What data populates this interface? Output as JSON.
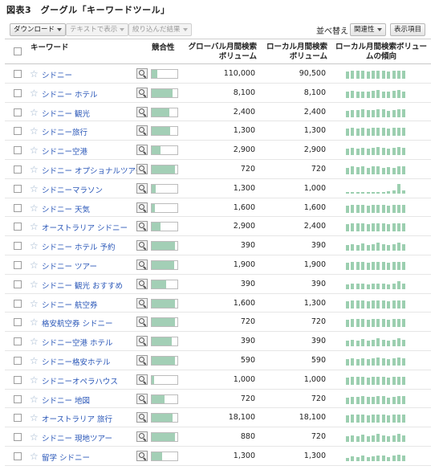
{
  "caption": "図表3　グーグル「キーワードツール」",
  "toolbar": {
    "download": "ダウンロード",
    "view_as_text": "テキストで表示",
    "filtered_results": "絞り込んだ結果",
    "sort_label": "並べ替え",
    "sort_value": "関連性",
    "display_items": "表示項目"
  },
  "header": {
    "keyword": "キーワード",
    "competition": "競合性",
    "global_volume_1": "グローバル月間検索",
    "global_volume_2": "ボリューム",
    "local_volume_1": "ローカル月間検索",
    "local_volume_2": "ボリューム",
    "local_trend_1": "ローカル月間検索ボリュー",
    "local_trend_2": "ムの傾向"
  },
  "rows": [
    {
      "keyword": "シドニー",
      "competition": 0.22,
      "global": "110,000",
      "local": "90,500",
      "trend": [
        0.75,
        0.8,
        0.8,
        0.8,
        0.75,
        0.8,
        0.85,
        0.8,
        0.75,
        0.8,
        0.85,
        0.8
      ]
    },
    {
      "keyword": "シドニー ホテル",
      "competition": 0.8,
      "global": "8,100",
      "local": "8,100",
      "trend": [
        0.7,
        0.75,
        0.7,
        0.7,
        0.7,
        0.75,
        0.8,
        0.7,
        0.7,
        0.75,
        0.8,
        0.7
      ]
    },
    {
      "keyword": "シドニー 観光",
      "competition": 0.68,
      "global": "2,400",
      "local": "2,400",
      "trend": [
        0.7,
        0.75,
        0.75,
        0.8,
        0.75,
        0.75,
        0.8,
        0.8,
        0.7,
        0.75,
        0.85,
        0.8
      ]
    },
    {
      "keyword": "シドニー旅行",
      "competition": 0.72,
      "global": "1,300",
      "local": "1,300",
      "trend": [
        0.75,
        0.8,
        0.75,
        0.8,
        0.75,
        0.8,
        0.85,
        0.8,
        0.75,
        0.8,
        0.85,
        0.8
      ]
    },
    {
      "keyword": "シドニー空港",
      "competition": 0.35,
      "global": "2,900",
      "local": "2,900",
      "trend": [
        0.7,
        0.75,
        0.7,
        0.75,
        0.7,
        0.75,
        0.8,
        0.75,
        0.7,
        0.75,
        0.8,
        0.75
      ]
    },
    {
      "keyword": "シドニー オプショナルツアー",
      "competition": 0.9,
      "global": "720",
      "local": "720",
      "trend": [
        0.7,
        0.8,
        0.75,
        0.8,
        0.7,
        0.8,
        0.85,
        0.7,
        0.75,
        0.7,
        0.8,
        0.8
      ]
    },
    {
      "keyword": "シドニーマラソン",
      "competition": 0.15,
      "global": "1,300",
      "local": "1,000",
      "trend": [
        0.15,
        0.15,
        0.15,
        0.2,
        0.15,
        0.2,
        0.2,
        0.2,
        0.25,
        0.3,
        1.0,
        0.3
      ]
    },
    {
      "keyword": "シドニー 天気",
      "competition": 0.12,
      "global": "1,600",
      "local": "1,600",
      "trend": [
        0.75,
        0.8,
        0.8,
        0.8,
        0.75,
        0.8,
        0.85,
        0.8,
        0.75,
        0.8,
        0.85,
        0.8
      ]
    },
    {
      "keyword": "オーストラリア シドニー",
      "competition": 0.35,
      "global": "2,900",
      "local": "2,400",
      "trend": [
        0.75,
        0.8,
        0.8,
        0.8,
        0.75,
        0.8,
        0.85,
        0.8,
        0.75,
        0.8,
        0.85,
        0.8
      ]
    },
    {
      "keyword": "シドニー ホテル 予約",
      "competition": 0.92,
      "global": "390",
      "local": "390",
      "trend": [
        0.6,
        0.7,
        0.6,
        0.75,
        0.6,
        0.7,
        0.8,
        0.7,
        0.6,
        0.7,
        0.8,
        0.7
      ]
    },
    {
      "keyword": "シドニー ツアー",
      "competition": 0.88,
      "global": "1,900",
      "local": "1,900",
      "trend": [
        0.75,
        0.8,
        0.8,
        0.8,
        0.75,
        0.8,
        0.85,
        0.8,
        0.75,
        0.8,
        0.85,
        0.8
      ]
    },
    {
      "keyword": "シドニー 観光 おすすめ",
      "competition": 0.55,
      "global": "390",
      "local": "390",
      "trend": [
        0.5,
        0.6,
        0.55,
        0.6,
        0.5,
        0.55,
        0.6,
        0.55,
        0.5,
        0.6,
        0.8,
        0.6
      ]
    },
    {
      "keyword": "シドニー 航空券",
      "competition": 0.92,
      "global": "1,600",
      "local": "1,300",
      "trend": [
        0.75,
        0.8,
        0.8,
        0.8,
        0.75,
        0.8,
        0.85,
        0.8,
        0.75,
        0.8,
        0.85,
        0.8
      ]
    },
    {
      "keyword": "格安航空券 シドニー",
      "competition": 0.9,
      "global": "720",
      "local": "720",
      "trend": [
        0.75,
        0.8,
        0.8,
        0.8,
        0.75,
        0.8,
        0.85,
        0.8,
        0.75,
        0.8,
        0.85,
        0.8
      ]
    },
    {
      "keyword": "シドニー空港 ホテル",
      "competition": 0.78,
      "global": "390",
      "local": "390",
      "trend": [
        0.6,
        0.7,
        0.6,
        0.75,
        0.6,
        0.7,
        0.8,
        0.7,
        0.6,
        0.7,
        0.8,
        0.7
      ]
    },
    {
      "keyword": "シドニー格安ホテル",
      "competition": 0.92,
      "global": "590",
      "local": "590",
      "trend": [
        0.7,
        0.75,
        0.7,
        0.75,
        0.7,
        0.75,
        0.8,
        0.75,
        0.7,
        0.75,
        0.8,
        0.75
      ]
    },
    {
      "keyword": "シドニーオペラハウス",
      "competition": 0.08,
      "global": "1,000",
      "local": "1,000",
      "trend": [
        0.75,
        0.8,
        0.8,
        0.8,
        0.75,
        0.8,
        0.85,
        0.8,
        0.75,
        0.8,
        0.85,
        0.8
      ]
    },
    {
      "keyword": "シドニー 地図",
      "competition": 0.5,
      "global": "720",
      "local": "720",
      "trend": [
        0.7,
        0.75,
        0.75,
        0.8,
        0.75,
        0.75,
        0.8,
        0.8,
        0.7,
        0.75,
        0.85,
        0.8
      ]
    },
    {
      "keyword": "オーストラリア 旅行",
      "competition": 0.82,
      "global": "18,100",
      "local": "18,100",
      "trend": [
        0.75,
        0.8,
        0.8,
        0.8,
        0.75,
        0.8,
        0.85,
        0.8,
        0.75,
        0.8,
        0.85,
        0.8
      ]
    },
    {
      "keyword": "シドニー 現地ツアー",
      "competition": 0.92,
      "global": "880",
      "local": "720",
      "trend": [
        0.6,
        0.7,
        0.6,
        0.75,
        0.6,
        0.7,
        0.8,
        0.7,
        0.6,
        0.7,
        0.8,
        0.7
      ]
    },
    {
      "keyword": "留学 シドニー",
      "competition": 0.4,
      "global": "1,300",
      "local": "1,300",
      "trend": [
        0.3,
        0.5,
        0.45,
        0.55,
        0.45,
        0.5,
        0.6,
        0.55,
        0.45,
        0.55,
        0.7,
        0.55
      ]
    }
  ]
}
